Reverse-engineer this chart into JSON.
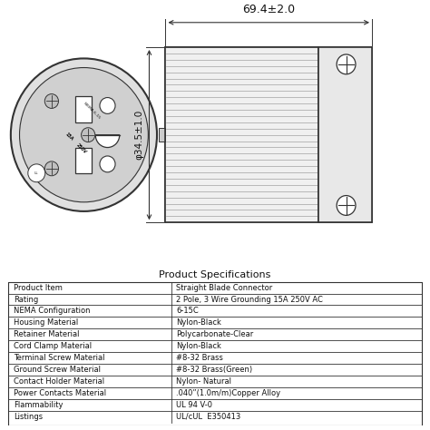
{
  "title": "Product Specifications",
  "dim_width": "69.4±2.0",
  "dim_diameter": "φ34.5±1.0",
  "bg_color": "#ffffff",
  "table_data": [
    [
      "Product Item",
      "Straight Blade Connector"
    ],
    [
      "Rating",
      "2 Pole, 3 Wire Grounding 15A 250V AC"
    ],
    [
      "NEMA Configuration",
      "6-15C"
    ],
    [
      "Housing Material",
      "Nylon-Black"
    ],
    [
      "Retainer Material",
      "Polycarbonate-Clear"
    ],
    [
      "Cord Clamp Material",
      "Nylon-Black"
    ],
    [
      "Terminal Screw Material",
      "#8-32 Brass"
    ],
    [
      "Ground Screw Material",
      "#8-32 Brass(Green)"
    ],
    [
      "Contact Holder Material",
      "Nylon- Natural"
    ],
    [
      "Power Contacts Material",
      ".040”(1.0m/m)Copper Alloy"
    ],
    [
      "Flammability",
      "UL 94 V-0"
    ],
    [
      "Listings",
      "UL/cUL  E350413"
    ]
  ],
  "line_color": "#333333",
  "text_color": "#111111"
}
